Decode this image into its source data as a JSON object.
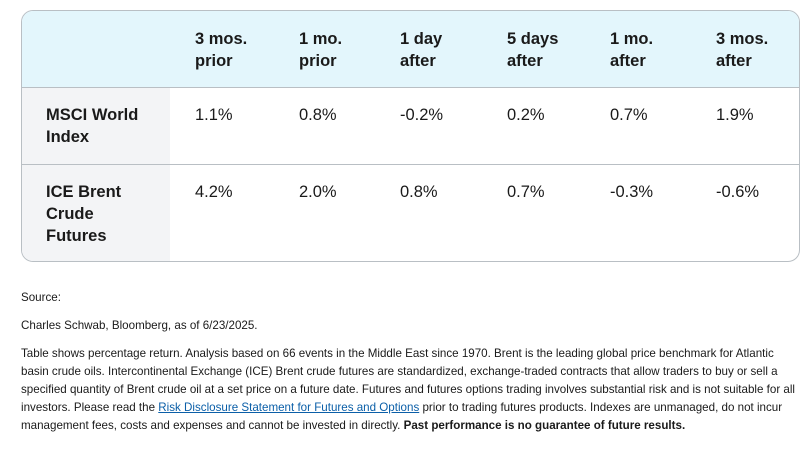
{
  "table": {
    "columns": [
      {
        "line1": "3 mos.",
        "line2": "prior"
      },
      {
        "line1": "1 mo.",
        "line2": "prior"
      },
      {
        "line1": "1 day",
        "line2": "after"
      },
      {
        "line1": "5 days",
        "line2": "after"
      },
      {
        "line1": "1 mo.",
        "line2": "after"
      },
      {
        "line1": "3 mos.",
        "line2": "after"
      }
    ],
    "rows": [
      {
        "label_lines": [
          "MSCI World",
          "Index"
        ],
        "values": [
          "1.1%",
          "0.8%",
          "-0.2%",
          "0.2%",
          "0.7%",
          "1.9%"
        ]
      },
      {
        "label_lines": [
          "ICE Brent",
          "Crude",
          "Futures"
        ],
        "values": [
          "4.2%",
          "2.0%",
          "0.8%",
          "0.7%",
          "-0.3%",
          "-0.6%"
        ]
      }
    ]
  },
  "notes": {
    "source_label": "Source:",
    "source_text": "Charles Schwab, Bloomberg, as of 6/23/2025.",
    "body_part1": "Table shows percentage return. Analysis based on 66 events in the Middle East since 1970. Brent is the leading global price benchmark for Atlantic basin crude oils. Intercontinental Exchange (ICE) Brent crude futures are standardized, exchange-traded contracts that allow traders to buy or sell a specified quantity of Brent crude oil at a set price on a future date.  Futures and futures options trading involves substantial risk and is not suitable for all investors. Please read the ",
    "link_text": "Risk Disclosure Statement for Futures and Options",
    "body_part2": " prior to trading futures products. Indexes are unmanaged, do not incur management fees, costs and expenses and cannot be invested in directly. ",
    "bold_text": "Past performance is no guarantee of future results."
  }
}
